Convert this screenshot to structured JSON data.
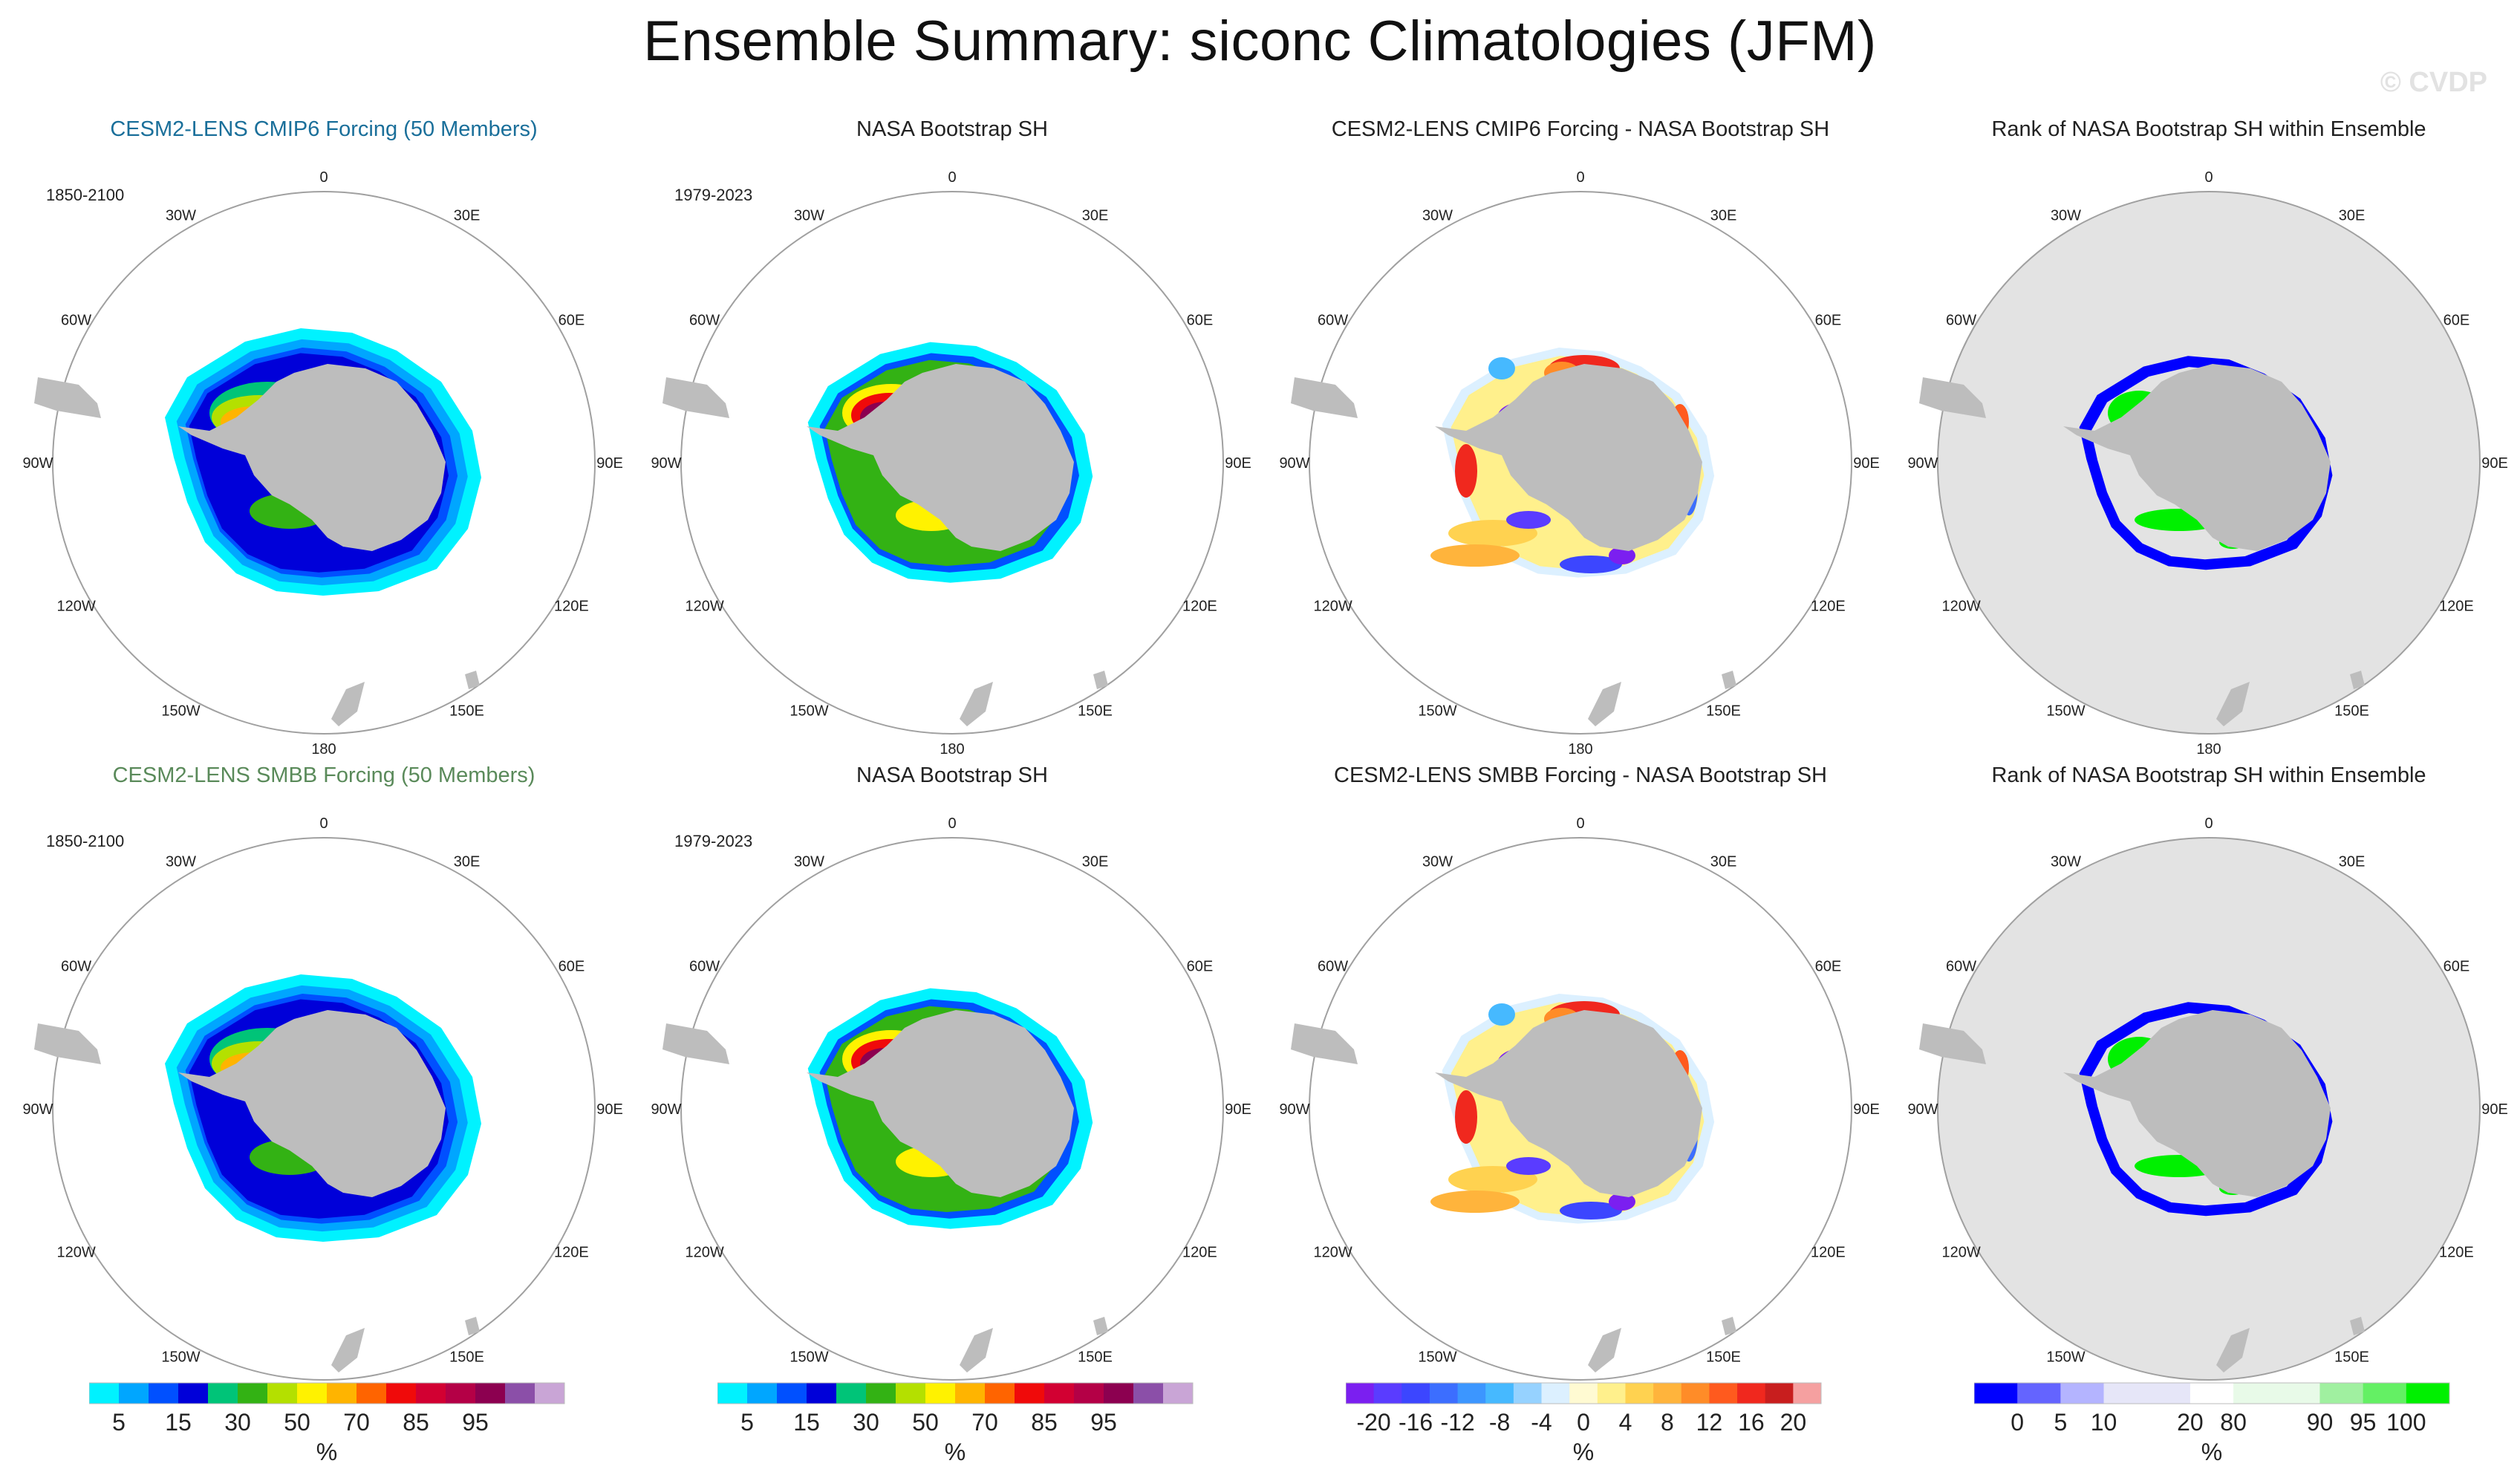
{
  "figure": {
    "title": "Ensemble Summary: siconc Climatologies (JFM)",
    "watermark": "© CVDP"
  },
  "colors": {
    "model1_title": "#1a6f9a",
    "model2_title": "#5a8a5a",
    "land": "#bdbdbd",
    "ocean_rank_background": "#e3e3e3",
    "circle_edge": "#a0a0a0"
  },
  "longitude_labels": [
    "0",
    "30E",
    "60E",
    "90E",
    "120E",
    "150E",
    "180",
    "150W",
    "120W",
    "90W",
    "60W",
    "30W"
  ],
  "chart_data": [
    {
      "type": "heatmap",
      "title": "CESM2-LENS CMIP6 Forcing (50 Members)",
      "period": "1850-2100",
      "variable": "siconc",
      "units": "%",
      "colorbar_key": "concentration",
      "field": "model_cmip6"
    },
    {
      "type": "heatmap",
      "title": "NASA Bootstrap SH",
      "period": "1979-2023",
      "variable": "siconc",
      "units": "%",
      "colorbar_key": "concentration",
      "field": "obs"
    },
    {
      "type": "heatmap",
      "title": "CESM2-LENS CMIP6 Forcing - NASA Bootstrap SH",
      "units": "%",
      "colorbar_key": "difference",
      "field": "diff_cmip6"
    },
    {
      "type": "heatmap",
      "title": "Rank of NASA Bootstrap SH within Ensemble",
      "units": "%",
      "colorbar_key": "rank",
      "field": "rank_cmip6"
    },
    {
      "type": "heatmap",
      "title": "CESM2-LENS SMBB Forcing (50 Members)",
      "period": "1850-2100",
      "variable": "siconc",
      "units": "%",
      "colorbar_key": "concentration",
      "field": "model_smbb"
    },
    {
      "type": "heatmap",
      "title": "NASA Bootstrap SH",
      "period": "1979-2023",
      "variable": "siconc",
      "units": "%",
      "colorbar_key": "concentration",
      "field": "obs"
    },
    {
      "type": "heatmap",
      "title": "CESM2-LENS SMBB Forcing - NASA Bootstrap SH",
      "units": "%",
      "colorbar_key": "difference",
      "field": "diff_smbb"
    },
    {
      "type": "heatmap",
      "title": "Rank of NASA Bootstrap SH within Ensemble",
      "units": "%",
      "colorbar_key": "rank",
      "field": "rank_smbb"
    }
  ],
  "colorbars": {
    "concentration": {
      "units": "%",
      "colors": [
        "#00f2ff",
        "#00a6ff",
        "#0050ff",
        "#0000d9",
        "#00c478",
        "#33b214",
        "#b4e000",
        "#fff200",
        "#ffb400",
        "#ff6400",
        "#f00a0a",
        "#d20032",
        "#b40046",
        "#8c0050",
        "#8b4fa8",
        "#c9a5d6"
      ],
      "tick_labels": [
        "5",
        "15",
        "30",
        "50",
        "70",
        "85",
        "95"
      ],
      "tick_positions": [
        1,
        3,
        5,
        7,
        9,
        11,
        13
      ]
    },
    "difference": {
      "units": "%",
      "colors": [
        "#7b1ff0",
        "#5a3cff",
        "#3c46ff",
        "#3c6eff",
        "#3c96ff",
        "#46b9ff",
        "#96d2ff",
        "#dcf0ff",
        "#fffad2",
        "#fff08c",
        "#ffd250",
        "#ffb43c",
        "#ff8c28",
        "#ff5a1e",
        "#f0281e",
        "#c81e1e",
        "#f5a0a0"
      ],
      "tick_labels": [
        "-20",
        "-16",
        "-12",
        "-8",
        "-4",
        "0",
        "4",
        "8",
        "12",
        "16",
        "20"
      ],
      "tick_positions": [
        1,
        2.5,
        4,
        5.5,
        7,
        8.5,
        10,
        11.5,
        13,
        14.5,
        16
      ]
    },
    "rank": {
      "units": "%",
      "colors": [
        "#0000ff",
        "#6464ff",
        "#b4b4ff",
        "#e6e6f8",
        "#e6e6f8",
        "#ffffff",
        "#e8fae8",
        "#e8fae8",
        "#a0f0a0",
        "#64f064",
        "#00f000"
      ],
      "tick_labels": [
        "0",
        "5",
        "10",
        "20",
        "80",
        "90",
        "95",
        "100"
      ],
      "tick_positions": [
        1,
        2,
        3,
        5,
        6,
        8,
        9,
        10
      ]
    }
  }
}
